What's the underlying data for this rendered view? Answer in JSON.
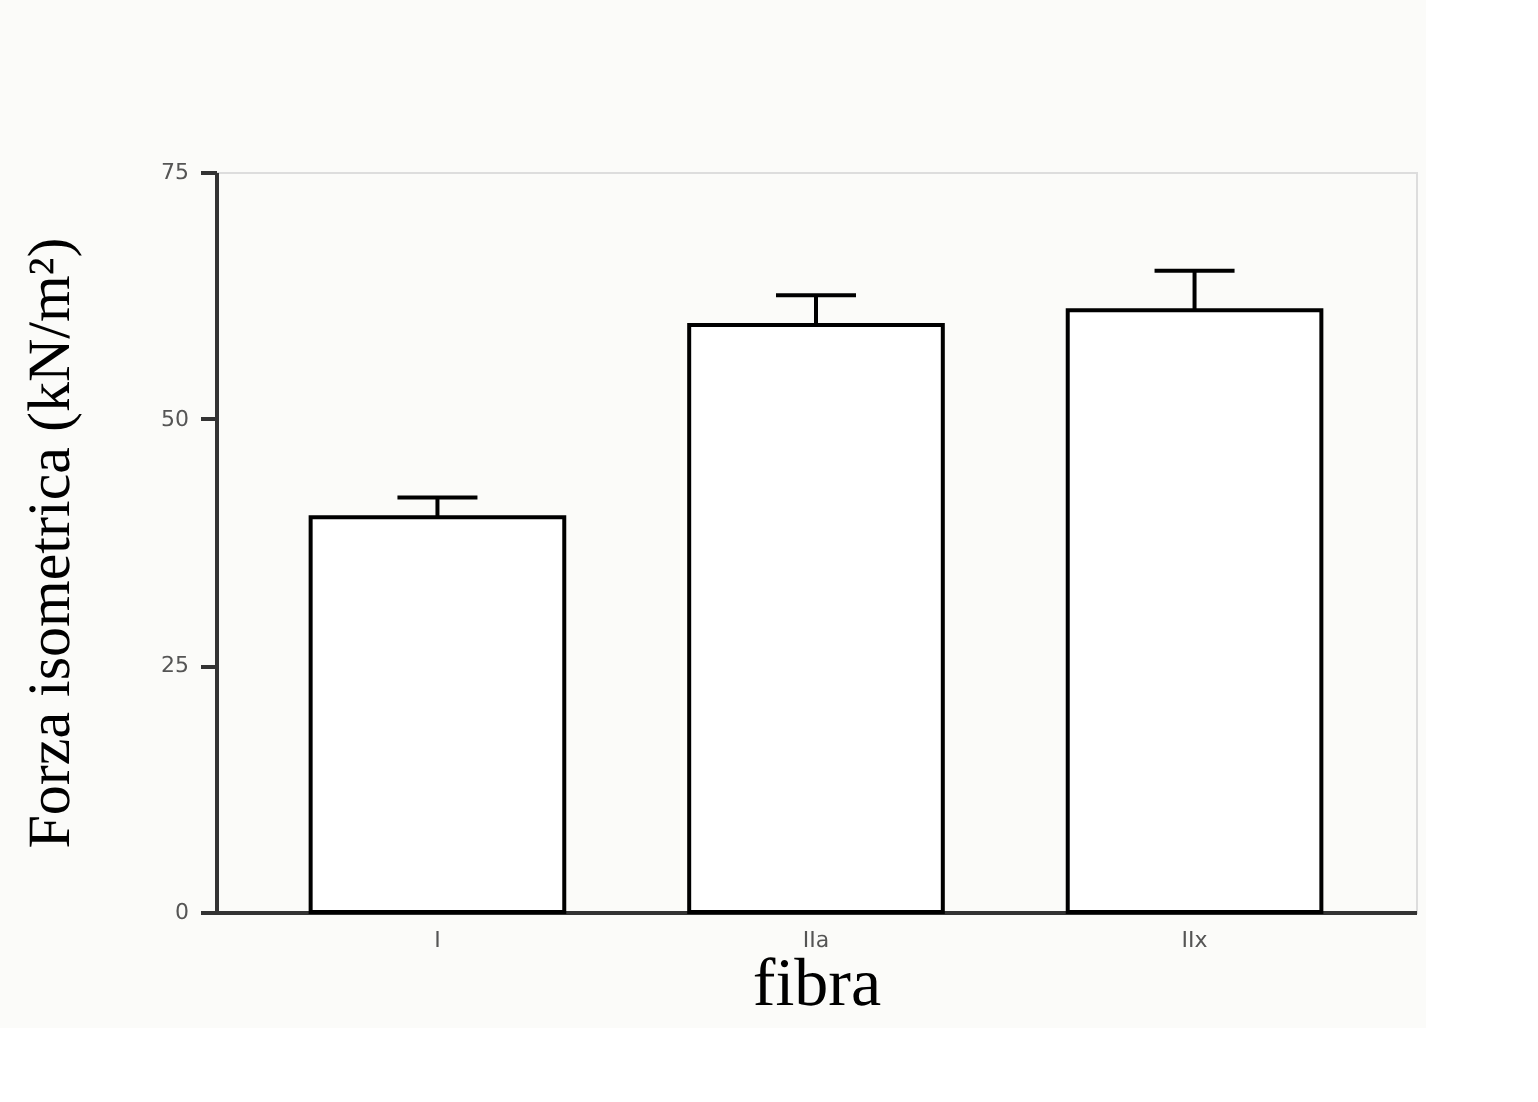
{
  "chart_data": {
    "type": "bar",
    "xlabel": "fibra",
    "ylabel": "Forza isometrica (kN/m²)",
    "categories": [
      "I",
      "IIa",
      "IIx"
    ],
    "values": [
      40,
      59.5,
      61
    ],
    "errors": [
      [
        40,
        42
      ],
      [
        59.5,
        62.5
      ],
      [
        61,
        65
      ]
    ],
    "color": "#ffffff",
    "ylim": [
      0,
      75
    ],
    "yticks": [
      0,
      25,
      50,
      75
    ],
    "grid": false
  }
}
